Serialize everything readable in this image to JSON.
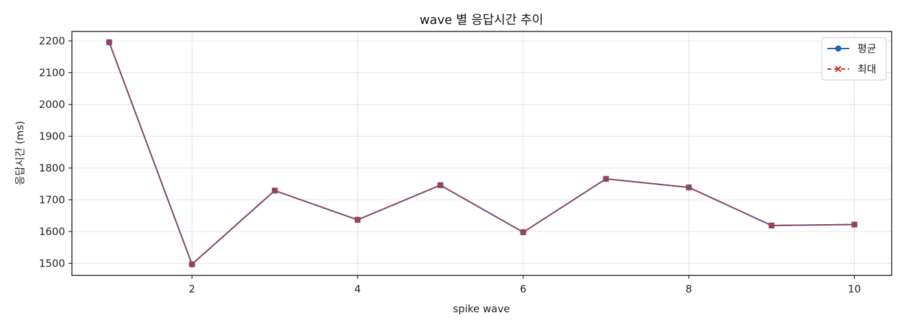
{
  "chart_data": {
    "type": "line",
    "title": "wave 별 응답시간 추이",
    "xlabel": "spike wave",
    "ylabel": "응답시간 (ms)",
    "x": [
      1,
      2,
      3,
      4,
      5,
      6,
      7,
      8,
      9,
      10
    ],
    "xlim": [
      0.55,
      10.45
    ],
    "ylim": [
      1462,
      2230
    ],
    "xticks": [
      2,
      4,
      6,
      8,
      10
    ],
    "yticks": [
      1500,
      1600,
      1700,
      1800,
      1900,
      2000,
      2100,
      2200
    ],
    "grid": true,
    "legend_position": "top-right",
    "series": [
      {
        "name": "평균",
        "values": [
          2196,
          1497,
          1729,
          1637,
          1746,
          1598,
          1766,
          1739,
          1619,
          1622
        ],
        "color": "#1f62b8",
        "style": "solid",
        "marker": "circle"
      },
      {
        "name": "최대",
        "values": [
          2196,
          1497,
          1729,
          1637,
          1746,
          1598,
          1766,
          1739,
          1619,
          1622
        ],
        "color": "#cc3333",
        "style": "dashed",
        "marker": "x"
      }
    ]
  }
}
